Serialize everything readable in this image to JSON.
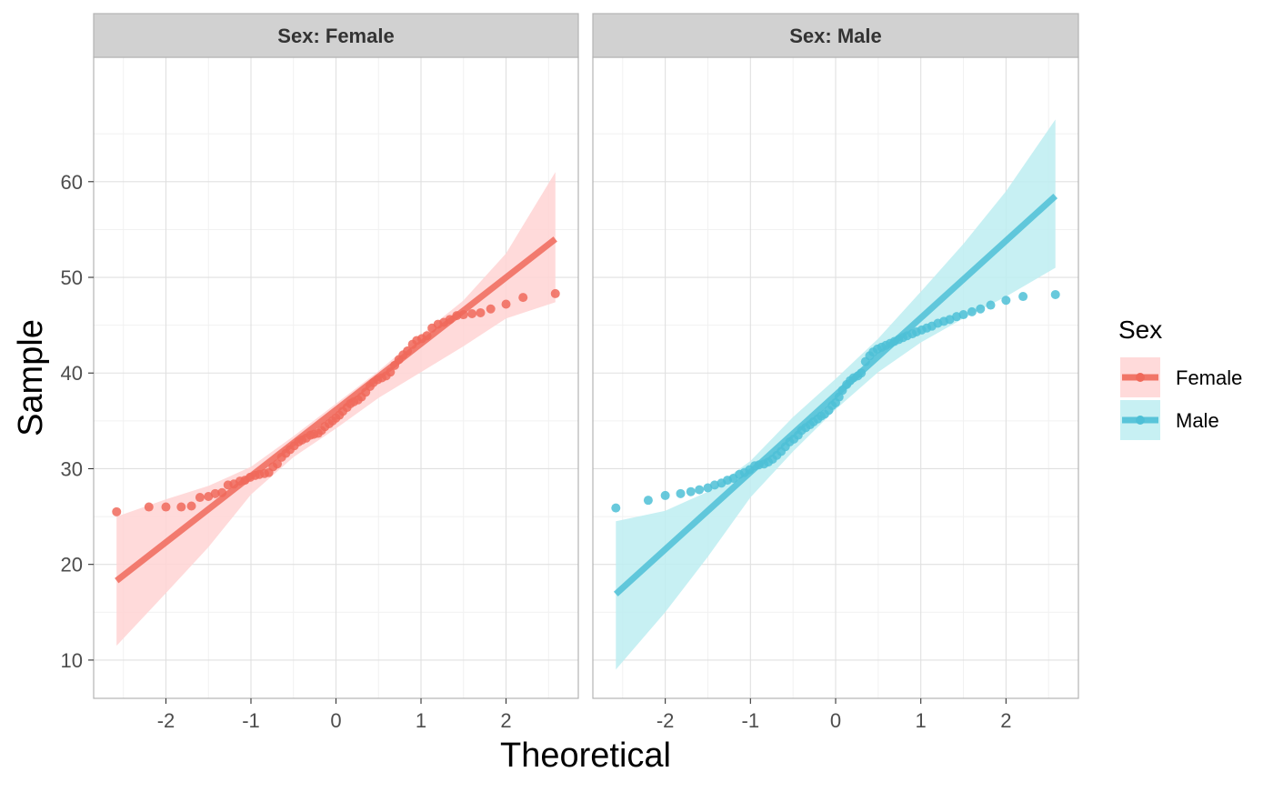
{
  "colors": {
    "female": "#F0695A",
    "male": "#4DBFD6",
    "female_band": "#FFD4D4",
    "male_band": "#BDEDF1",
    "strip": "#D1D1D1",
    "grid_major": "#E0E0E0",
    "grid_minor": "#F1F1F1",
    "panel_border": "#B3B3B3",
    "axis_text": "#4D4D4D"
  },
  "chart_data": {
    "type": "scatter",
    "subtype": "qq-plot-faceted",
    "xlabel": "Theoretical",
    "ylabel": "Sample",
    "xlim": [
      -2.85,
      2.85
    ],
    "ylim": [
      6,
      73
    ],
    "x_ticks": [
      -2,
      -1,
      0,
      1,
      2
    ],
    "x_tick_labels": [
      "-2",
      "-1",
      "0",
      "1",
      "2"
    ],
    "y_ticks": [
      10,
      20,
      30,
      40,
      50,
      60
    ],
    "y_tick_labels": [
      "10",
      "20",
      "30",
      "40",
      "50",
      "60"
    ],
    "grid": true,
    "legend": {
      "title": "Sex",
      "position": "right",
      "entries": [
        "Female",
        "Male"
      ]
    },
    "panels": [
      {
        "strip_label": "Sex: Female",
        "series_name": "Female",
        "line": {
          "x": [
            -2.58,
            2.58
          ],
          "y": [
            18.3,
            54.0
          ]
        },
        "band": {
          "x": [
            -2.58,
            -2.0,
            -1.5,
            -1.0,
            -0.5,
            0.0,
            0.5,
            1.0,
            1.5,
            2.0,
            2.58
          ],
          "upper": [
            25.0,
            26.8,
            28.2,
            30.2,
            33.4,
            36.8,
            40.2,
            44.0,
            47.6,
            52.5,
            61.0
          ],
          "lower": [
            11.5,
            17.0,
            21.8,
            27.3,
            31.2,
            34.2,
            37.4,
            40.1,
            42.8,
            45.7,
            47.4
          ]
        },
        "points": [
          [
            -2.58,
            25.5
          ],
          [
            -2.2,
            26.0
          ],
          [
            -2.0,
            26.0
          ],
          [
            -1.82,
            26.0
          ],
          [
            -1.7,
            26.1
          ],
          [
            -1.6,
            27.0
          ],
          [
            -1.5,
            27.1
          ],
          [
            -1.42,
            27.4
          ],
          [
            -1.34,
            27.5
          ],
          [
            -1.27,
            28.3
          ],
          [
            -1.2,
            28.4
          ],
          [
            -1.13,
            28.7
          ],
          [
            -1.07,
            28.8
          ],
          [
            -1.01,
            29.1
          ],
          [
            -0.95,
            29.3
          ],
          [
            -0.9,
            29.4
          ],
          [
            -0.84,
            29.5
          ],
          [
            -0.79,
            29.6
          ],
          [
            -0.74,
            30.2
          ],
          [
            -0.69,
            30.5
          ],
          [
            -0.64,
            31.2
          ],
          [
            -0.59,
            31.6
          ],
          [
            -0.54,
            32.0
          ],
          [
            -0.49,
            32.4
          ],
          [
            -0.44,
            32.8
          ],
          [
            -0.4,
            33.0
          ],
          [
            -0.35,
            33.2
          ],
          [
            -0.3,
            33.5
          ],
          [
            -0.26,
            33.6
          ],
          [
            -0.21,
            33.7
          ],
          [
            -0.17,
            34.0
          ],
          [
            -0.13,
            34.4
          ],
          [
            -0.08,
            34.7
          ],
          [
            -0.04,
            35.0
          ],
          [
            0.0,
            35.3
          ],
          [
            0.04,
            35.6
          ],
          [
            0.08,
            36.0
          ],
          [
            0.13,
            36.4
          ],
          [
            0.17,
            36.8
          ],
          [
            0.21,
            37.0
          ],
          [
            0.26,
            37.2
          ],
          [
            0.3,
            37.5
          ],
          [
            0.35,
            38.0
          ],
          [
            0.4,
            38.6
          ],
          [
            0.44,
            39.0
          ],
          [
            0.49,
            39.3
          ],
          [
            0.54,
            39.5
          ],
          [
            0.59,
            39.7
          ],
          [
            0.64,
            40.1
          ],
          [
            0.69,
            40.8
          ],
          [
            0.74,
            41.4
          ],
          [
            0.79,
            41.9
          ],
          [
            0.84,
            42.3
          ],
          [
            0.9,
            43.0
          ],
          [
            0.95,
            43.4
          ],
          [
            1.01,
            43.6
          ],
          [
            1.07,
            43.9
          ],
          [
            1.13,
            44.7
          ],
          [
            1.2,
            45.1
          ],
          [
            1.27,
            45.3
          ],
          [
            1.34,
            45.6
          ],
          [
            1.42,
            46.0
          ],
          [
            1.5,
            46.1
          ],
          [
            1.6,
            46.2
          ],
          [
            1.7,
            46.3
          ],
          [
            1.82,
            46.7
          ],
          [
            2.0,
            47.2
          ],
          [
            2.2,
            47.9
          ],
          [
            2.58,
            48.3
          ]
        ]
      },
      {
        "strip_label": "Sex: Male",
        "series_name": "Male",
        "line": {
          "x": [
            -2.58,
            2.58
          ],
          "y": [
            16.9,
            58.5
          ]
        },
        "band": {
          "x": [
            -2.58,
            -2.0,
            -1.5,
            -1.0,
            -0.5,
            0.0,
            0.5,
            1.0,
            1.5,
            2.0,
            2.58
          ],
          "upper": [
            24.5,
            25.6,
            27.6,
            30.8,
            35.4,
            39.4,
            43.6,
            48.5,
            53.5,
            59.0,
            66.5
          ],
          "lower": [
            9.0,
            15.0,
            20.8,
            27.0,
            31.8,
            36.2,
            40.1,
            43.2,
            45.7,
            48.0,
            51.0
          ]
        },
        "points": [
          [
            -2.58,
            25.9
          ],
          [
            -2.2,
            26.7
          ],
          [
            -2.0,
            27.2
          ],
          [
            -1.82,
            27.4
          ],
          [
            -1.7,
            27.6
          ],
          [
            -1.6,
            27.8
          ],
          [
            -1.5,
            28.0
          ],
          [
            -1.42,
            28.3
          ],
          [
            -1.34,
            28.5
          ],
          [
            -1.27,
            28.8
          ],
          [
            -1.2,
            29.0
          ],
          [
            -1.13,
            29.4
          ],
          [
            -1.07,
            29.6
          ],
          [
            -1.01,
            29.9
          ],
          [
            -0.95,
            30.3
          ],
          [
            -0.9,
            30.4
          ],
          [
            -0.84,
            30.5
          ],
          [
            -0.79,
            30.7
          ],
          [
            -0.74,
            31.0
          ],
          [
            -0.69,
            31.4
          ],
          [
            -0.64,
            31.8
          ],
          [
            -0.59,
            32.3
          ],
          [
            -0.54,
            32.8
          ],
          [
            -0.49,
            33.1
          ],
          [
            -0.44,
            33.5
          ],
          [
            -0.4,
            34.0
          ],
          [
            -0.35,
            34.3
          ],
          [
            -0.3,
            34.6
          ],
          [
            -0.26,
            34.9
          ],
          [
            -0.21,
            35.2
          ],
          [
            -0.17,
            35.5
          ],
          [
            -0.13,
            35.7
          ],
          [
            -0.08,
            36.1
          ],
          [
            -0.04,
            36.6
          ],
          [
            0.0,
            36.9
          ],
          [
            0.04,
            37.5
          ],
          [
            0.08,
            38.2
          ],
          [
            0.13,
            38.8
          ],
          [
            0.17,
            39.2
          ],
          [
            0.21,
            39.5
          ],
          [
            0.26,
            39.7
          ],
          [
            0.3,
            40.0
          ],
          [
            0.35,
            41.2
          ],
          [
            0.4,
            41.8
          ],
          [
            0.44,
            42.2
          ],
          [
            0.49,
            42.5
          ],
          [
            0.54,
            42.7
          ],
          [
            0.59,
            42.9
          ],
          [
            0.64,
            43.1
          ],
          [
            0.69,
            43.3
          ],
          [
            0.74,
            43.5
          ],
          [
            0.79,
            43.7
          ],
          [
            0.84,
            43.9
          ],
          [
            0.9,
            44.1
          ],
          [
            0.95,
            44.3
          ],
          [
            1.01,
            44.5
          ],
          [
            1.07,
            44.7
          ],
          [
            1.13,
            44.9
          ],
          [
            1.2,
            45.2
          ],
          [
            1.27,
            45.4
          ],
          [
            1.34,
            45.6
          ],
          [
            1.42,
            45.9
          ],
          [
            1.5,
            46.1
          ],
          [
            1.6,
            46.4
          ],
          [
            1.7,
            46.7
          ],
          [
            1.82,
            47.1
          ],
          [
            2.0,
            47.6
          ],
          [
            2.2,
            48.0
          ],
          [
            2.58,
            48.2
          ]
        ]
      }
    ]
  }
}
